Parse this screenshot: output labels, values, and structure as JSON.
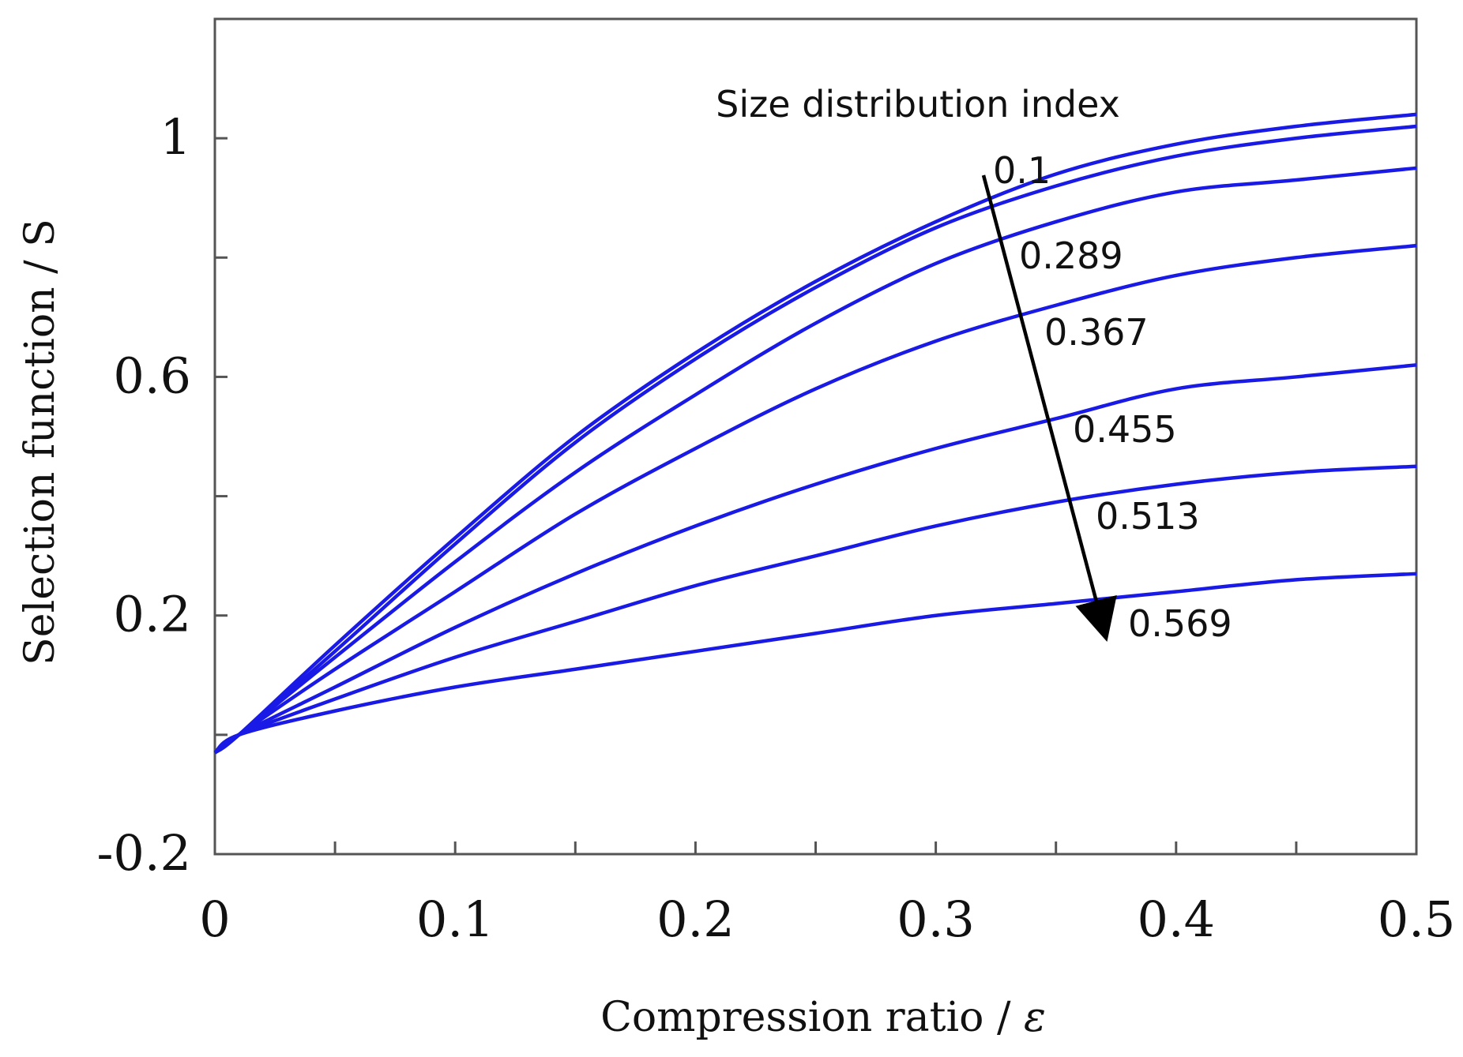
{
  "chart_data": {
    "type": "line",
    "title": "",
    "xlabel": "Compression ratio / ",
    "xlabel_symbol": "ε",
    "ylabel": "Selection function / S",
    "xlim": [
      0,
      0.5
    ],
    "ylim": [
      -0.2,
      1.2
    ],
    "x_ticks": [
      0,
      0.1,
      0.2,
      0.3,
      0.4,
      0.5
    ],
    "x_tick_labels": [
      "0",
      "0.1",
      "0.2",
      "0.3",
      "0.4",
      "0.5"
    ],
    "y_ticks": [
      -0.2,
      0.2,
      0.6,
      1.0
    ],
    "y_tick_labels": [
      "-0.2",
      "0.2",
      "0.6",
      "1"
    ],
    "legend_title": "Size distribution index",
    "annotation": "arrow indicating increasing size distribution index",
    "x": [
      0,
      0.01,
      0.05,
      0.1,
      0.15,
      0.2,
      0.25,
      0.3,
      0.35,
      0.4,
      0.45,
      0.5
    ],
    "series": [
      {
        "name": "0.1",
        "values": [
          -0.03,
          0.0,
          0.15,
          0.33,
          0.5,
          0.64,
          0.76,
          0.86,
          0.94,
          0.99,
          1.02,
          1.04
        ]
      },
      {
        "name": "0.289",
        "values": [
          -0.03,
          0.0,
          0.14,
          0.32,
          0.49,
          0.63,
          0.75,
          0.85,
          0.92,
          0.97,
          1.0,
          1.02
        ]
      },
      {
        "name": "0.367",
        "values": [
          -0.03,
          0.0,
          0.13,
          0.29,
          0.44,
          0.57,
          0.69,
          0.79,
          0.86,
          0.91,
          0.93,
          0.95
        ]
      },
      {
        "name": "0.455",
        "values": [
          -0.03,
          0.0,
          0.11,
          0.24,
          0.37,
          0.48,
          0.58,
          0.66,
          0.72,
          0.77,
          0.8,
          0.82
        ]
      },
      {
        "name": "0.513",
        "values": [
          -0.03,
          0.0,
          0.08,
          0.18,
          0.27,
          0.35,
          0.42,
          0.48,
          0.53,
          0.58,
          0.6,
          0.62
        ]
      },
      {
        "name": "0.569",
        "values": [
          -0.03,
          0.0,
          0.06,
          0.13,
          0.19,
          0.25,
          0.3,
          0.35,
          0.39,
          0.42,
          0.44,
          0.45
        ]
      },
      {
        "name": "",
        "values": [
          -0.03,
          0.0,
          0.04,
          0.08,
          0.11,
          0.14,
          0.17,
          0.2,
          0.22,
          0.24,
          0.26,
          0.27
        ]
      }
    ]
  }
}
